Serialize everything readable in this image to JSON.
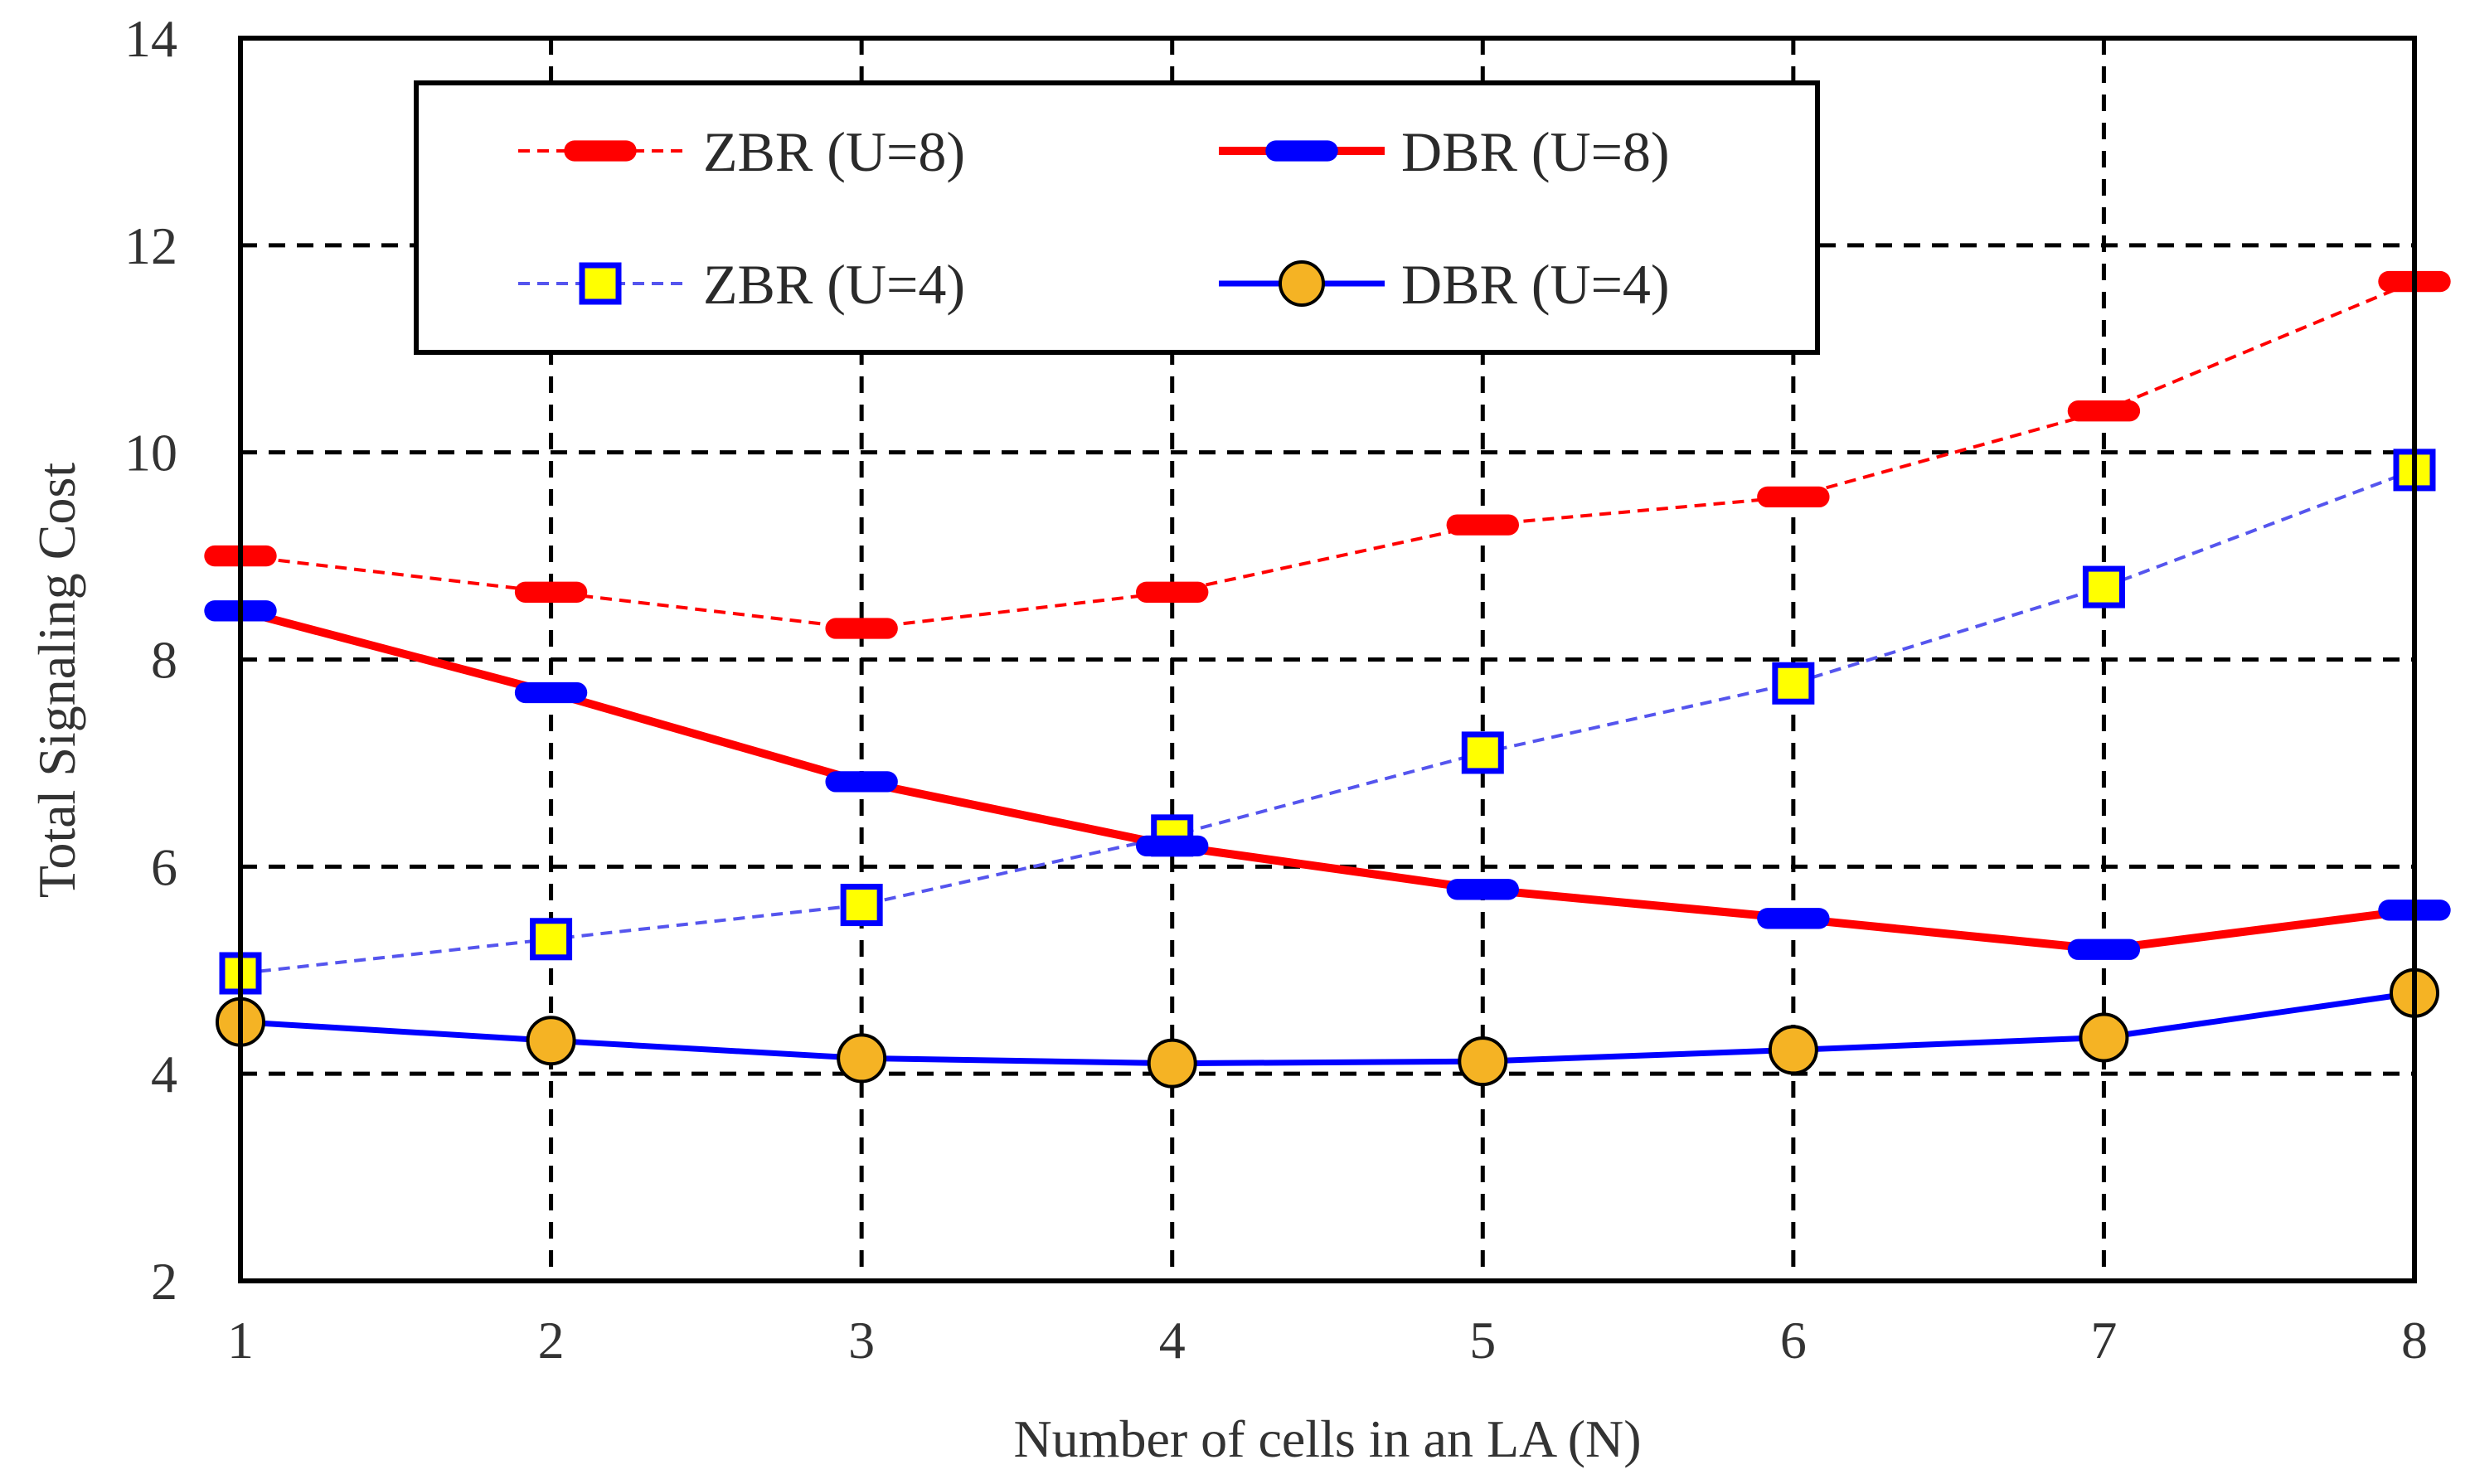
{
  "chart_data": {
    "type": "line",
    "title": "",
    "xlabel": "Number of cells in an LA (N)",
    "ylabel": "Total Signaling Cost",
    "x": [
      1,
      2,
      3,
      4,
      5,
      6,
      7,
      8
    ],
    "xticks": [
      "1",
      "2",
      "3",
      "4",
      "5",
      "6",
      "7",
      "8"
    ],
    "yticks": [
      "2",
      "4",
      "6",
      "8",
      "10",
      "12",
      "14"
    ],
    "xlim": [
      1,
      8
    ],
    "ylim": [
      2,
      14
    ],
    "grid": "dashed",
    "legend_position": "top",
    "series": [
      {
        "name": "ZBR (U=8)",
        "values": [
          9.0,
          8.65,
          8.3,
          8.65,
          9.3,
          9.57,
          10.4,
          11.65
        ],
        "color": "#ff0000",
        "line": "dashed",
        "marker": "dash",
        "marker_color": "#ff0000"
      },
      {
        "name": "DBR (U=8)",
        "values": [
          8.47,
          7.68,
          6.82,
          6.2,
          5.78,
          5.5,
          5.2,
          5.58
        ],
        "color": "#ff0000",
        "line": "solid",
        "marker": "dash",
        "marker_color": "#0000ff"
      },
      {
        "name": "ZBR (U=4)",
        "values": [
          4.97,
          5.3,
          5.63,
          6.3,
          7.1,
          7.77,
          8.7,
          9.83
        ],
        "color": "#5555ee",
        "line": "dashed",
        "marker": "square",
        "marker_color": "#ffff00"
      },
      {
        "name": "DBR (U=4)",
        "values": [
          4.5,
          4.32,
          4.15,
          4.1,
          4.12,
          4.23,
          4.35,
          4.78
        ],
        "color": "#0000ff",
        "line": "solid",
        "marker": "circle",
        "marker_color": "#f5b324"
      }
    ]
  }
}
